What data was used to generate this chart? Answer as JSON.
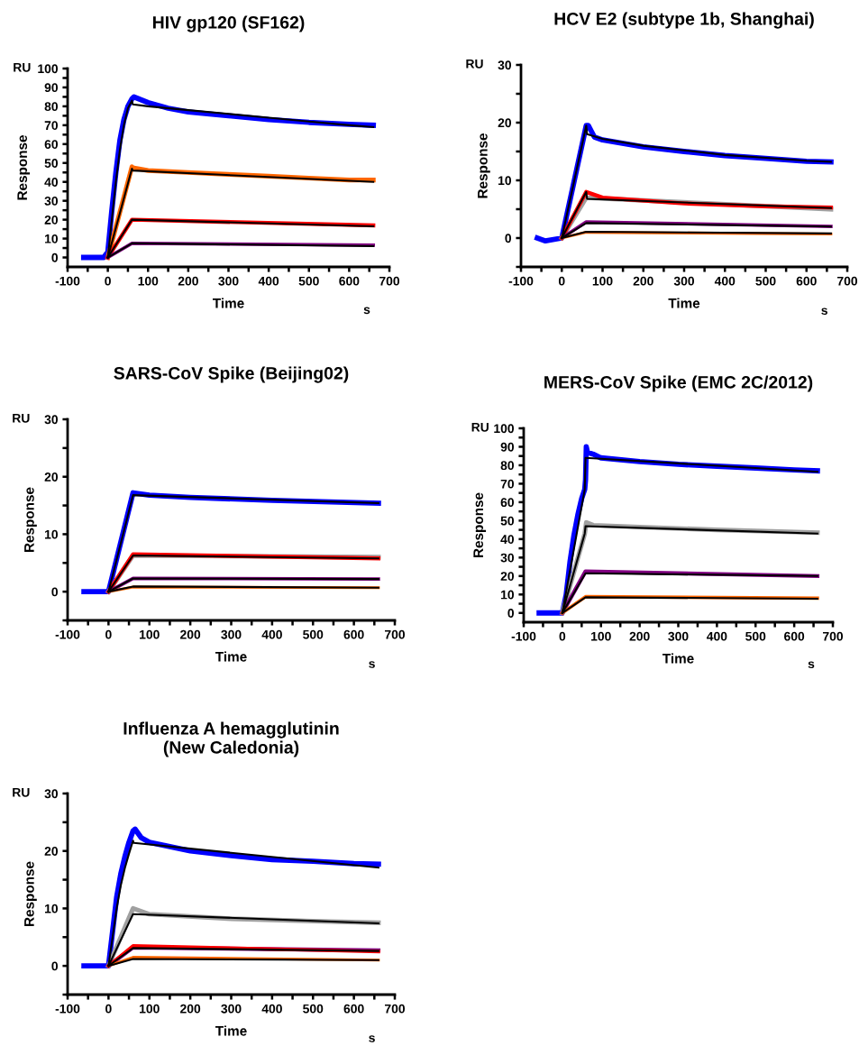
{
  "chart_data": [
    {
      "type": "line",
      "title": "HIV gp120 (SF162)",
      "xlabel": "Time",
      "ylabel": "Response",
      "annotations": [
        "RU",
        "s"
      ],
      "line_style": "solid",
      "xlim": [
        -100,
        700
      ],
      "xticks": [
        -100,
        {
          "value": -50,
          "label": null
        },
        0,
        {
          "value": 50,
          "label": null
        },
        100,
        {
          "value": 150,
          "label": null
        },
        200,
        {
          "value": 250,
          "label": null
        },
        300,
        {
          "value": 350,
          "label": null
        },
        400,
        {
          "value": 450,
          "label": null
        },
        500,
        {
          "value": 550,
          "label": null
        },
        600,
        {
          "value": 650,
          "label": null
        },
        700
      ],
      "ylim": [
        -5,
        100
      ],
      "yticks": [
        0,
        {
          "value": 5,
          "label": null
        },
        10,
        {
          "value": 15,
          "label": null
        },
        20,
        {
          "value": 25,
          "label": null
        },
        30,
        {
          "value": 35,
          "label": null
        },
        40,
        {
          "value": 45,
          "label": null
        },
        50,
        {
          "value": 55,
          "label": null
        },
        60,
        {
          "value": 65,
          "label": null
        },
        70,
        {
          "value": 75,
          "label": null
        },
        80,
        {
          "value": 85,
          "label": null
        },
        90,
        {
          "value": 95,
          "label": null
        },
        100
      ],
      "series": [
        {
          "color": "#0000ff",
          "x": [
            -60,
            -10,
            0,
            10,
            20,
            30,
            40,
            50,
            60,
            65,
            100,
            150,
            200,
            300,
            400,
            500,
            600,
            660
          ],
          "values": [
            0,
            0,
            3,
            25,
            45,
            62,
            73,
            80,
            84,
            85,
            82,
            79,
            77,
            75,
            73,
            71.5,
            70.5,
            70
          ]
        },
        {
          "color": "#ff6600",
          "x": [
            0,
            60,
            62,
            100,
            200,
            300,
            400,
            500,
            600,
            660
          ],
          "values": [
            0,
            48,
            47.5,
            46,
            45,
            44,
            43,
            42,
            41,
            41
          ]
        },
        {
          "color": "#ff0000",
          "x": [
            0,
            60,
            660
          ],
          "values": [
            0,
            20,
            17
          ]
        },
        {
          "color": "#800080",
          "x": [
            0,
            60,
            660
          ],
          "values": [
            0,
            7.5,
            6.5
          ]
        },
        {
          "color": "#000000",
          "x": [
            0,
            10,
            20,
            30,
            40,
            50,
            60,
            62,
            100,
            200,
            300,
            400,
            500,
            600,
            660
          ],
          "values": [
            0,
            20,
            40,
            57,
            70,
            79,
            83,
            81,
            80,
            78,
            76,
            74,
            72,
            70,
            69
          ]
        },
        {
          "color": "#000000",
          "x": [
            0,
            60,
            62,
            660
          ],
          "values": [
            0,
            47,
            46,
            40
          ]
        },
        {
          "color": "#000000",
          "x": [
            0,
            60,
            660
          ],
          "values": [
            0,
            20,
            16.5
          ]
        },
        {
          "color": "#000000",
          "x": [
            0,
            60,
            660
          ],
          "values": [
            0,
            7.5,
            6
          ]
        }
      ]
    },
    {
      "type": "line",
      "title": "HCV E2 (subtype 1b, Shanghai)",
      "xlabel": "Time",
      "ylabel": "Response",
      "annotations": [
        "RU",
        "s"
      ],
      "line_style": "solid",
      "xlim": [
        -100,
        700
      ],
      "xticks": [
        -100,
        {
          "value": -50,
          "label": null
        },
        0,
        {
          "value": 50,
          "label": null
        },
        100,
        {
          "value": 150,
          "label": null
        },
        200,
        {
          "value": 250,
          "label": null
        },
        300,
        {
          "value": 350,
          "label": null
        },
        400,
        {
          "value": 450,
          "label": null
        },
        500,
        {
          "value": 550,
          "label": null
        },
        600,
        {
          "value": 650,
          "label": null
        },
        700
      ],
      "ylim": [
        -5,
        30
      ],
      "yticks": [
        {
          "value": -5,
          "label": null
        },
        0,
        {
          "value": 5,
          "label": null
        },
        10,
        {
          "value": 15,
          "label": null
        },
        20,
        {
          "value": 25,
          "label": null
        },
        30
      ],
      "series": [
        {
          "color": "#0000ff",
          "x": [
            -60,
            -40,
            0,
            60,
            65,
            80,
            100,
            200,
            300,
            400,
            500,
            600,
            660
          ],
          "values": [
            0,
            -0.5,
            0,
            19.5,
            19.5,
            17.5,
            17,
            15.8,
            15,
            14.3,
            13.8,
            13.3,
            13.2
          ]
        },
        {
          "color": "#a0a0a0",
          "x": [
            0,
            60,
            660
          ],
          "values": [
            0,
            7,
            5
          ]
        },
        {
          "color": "#ff0000",
          "x": [
            0,
            60,
            100,
            300,
            500,
            660
          ],
          "values": [
            0,
            8,
            7,
            6,
            5.5,
            5.3
          ]
        },
        {
          "color": "#800080",
          "x": [
            0,
            60,
            660
          ],
          "values": [
            0,
            2.8,
            2
          ]
        },
        {
          "color": "#ff6600",
          "x": [
            0,
            60,
            660
          ],
          "values": [
            0,
            1,
            0.7
          ]
        },
        {
          "color": "#000000",
          "x": [
            0,
            60,
            62,
            100,
            200,
            300,
            400,
            500,
            600,
            660
          ],
          "values": [
            0,
            19.5,
            18,
            17.2,
            16,
            15.2,
            14.4,
            13.9,
            13.4,
            13.2
          ]
        },
        {
          "color": "#000000",
          "x": [
            0,
            60,
            62,
            660
          ],
          "values": [
            0,
            8,
            6.8,
            5.2
          ]
        },
        {
          "color": "#000000",
          "x": [
            0,
            60,
            660
          ],
          "values": [
            0,
            2.6,
            2
          ]
        },
        {
          "color": "#000000",
          "x": [
            0,
            60,
            660
          ],
          "values": [
            0,
            1.1,
            0.8
          ]
        }
      ]
    },
    {
      "type": "line",
      "title": "SARS-CoV Spike (Beijing02)",
      "xlabel": "Time",
      "ylabel": "Response",
      "annotations": [
        "RU",
        "s"
      ],
      "line_style": "solid",
      "xlim": [
        -100,
        700
      ],
      "xticks": [
        -100,
        {
          "value": -50,
          "label": null
        },
        0,
        {
          "value": 50,
          "label": null
        },
        100,
        {
          "value": 150,
          "label": null
        },
        200,
        {
          "value": 250,
          "label": null
        },
        300,
        {
          "value": 350,
          "label": null
        },
        400,
        {
          "value": 450,
          "label": null
        },
        500,
        {
          "value": 550,
          "label": null
        },
        600,
        {
          "value": 650,
          "label": null
        },
        700
      ],
      "ylim": [
        -5,
        30
      ],
      "yticks": [
        {
          "value": -5,
          "label": null
        },
        0,
        {
          "value": 5,
          "label": null
        },
        10,
        {
          "value": 15,
          "label": null
        },
        20,
        {
          "value": 25,
          "label": null
        },
        30
      ],
      "series": [
        {
          "color": "#0000ff",
          "x": [
            -60,
            0,
            60,
            100,
            200,
            400,
            660
          ],
          "values": [
            0,
            0,
            17.2,
            16.8,
            16.4,
            15.9,
            15.4
          ]
        },
        {
          "color": "#a0a0a0",
          "x": [
            0,
            60,
            660
          ],
          "values": [
            0,
            6.3,
            6
          ]
        },
        {
          "color": "#ff0000",
          "x": [
            0,
            60,
            660
          ],
          "values": [
            0,
            6.5,
            5.8
          ]
        },
        {
          "color": "#800080",
          "x": [
            0,
            60,
            660
          ],
          "values": [
            0,
            2.3,
            2.2
          ]
        },
        {
          "color": "#ff6600",
          "x": [
            0,
            60,
            660
          ],
          "values": [
            0,
            0.8,
            0.7
          ]
        },
        {
          "color": "#000000",
          "x": [
            0,
            60,
            660
          ],
          "values": [
            0,
            16.8,
            15.4
          ]
        },
        {
          "color": "#000000",
          "x": [
            0,
            60,
            660
          ],
          "values": [
            0,
            6.3,
            5.8
          ]
        },
        {
          "color": "#000000",
          "x": [
            0,
            60,
            660
          ],
          "values": [
            0,
            2.3,
            2.2
          ]
        },
        {
          "color": "#000000",
          "x": [
            0,
            60,
            660
          ],
          "values": [
            0,
            0.9,
            0.7
          ]
        }
      ]
    },
    {
      "type": "line",
      "title": "MERS-CoV Spike (EMC 2C/2012)",
      "xlabel": "Time",
      "ylabel": "Response",
      "annotations": [
        "RU",
        "s"
      ],
      "line_style": "solid",
      "xlim": [
        -100,
        700
      ],
      "xticks": [
        -100,
        {
          "value": -50,
          "label": null
        },
        0,
        {
          "value": 50,
          "label": null
        },
        100,
        {
          "value": 150,
          "label": null
        },
        200,
        {
          "value": 250,
          "label": null
        },
        300,
        {
          "value": 350,
          "label": null
        },
        400,
        {
          "value": 450,
          "label": null
        },
        500,
        {
          "value": 550,
          "label": null
        },
        600,
        {
          "value": 650,
          "label": null
        },
        700
      ],
      "ylim": [
        -5,
        100
      ],
      "yticks": [
        0,
        {
          "value": 5,
          "label": null
        },
        10,
        {
          "value": 15,
          "label": null
        },
        20,
        {
          "value": 25,
          "label": null
        },
        30,
        {
          "value": 35,
          "label": null
        },
        40,
        {
          "value": 45,
          "label": null
        },
        50,
        {
          "value": 55,
          "label": null
        },
        60,
        {
          "value": 65,
          "label": null
        },
        70,
        {
          "value": 75,
          "label": null
        },
        80,
        {
          "value": 85,
          "label": null
        },
        90,
        {
          "value": 95,
          "label": null
        },
        100
      ],
      "series": [
        {
          "color": "#0000ff",
          "x": [
            -60,
            0,
            10,
            20,
            30,
            40,
            50,
            58,
            60,
            62,
            65,
            80,
            100,
            200,
            300,
            400,
            500,
            600,
            660
          ],
          "values": [
            0,
            0,
            10,
            28,
            42,
            53,
            62,
            67,
            72,
            90,
            87,
            86,
            84,
            82,
            80.5,
            79.5,
            78.5,
            77.5,
            77
          ]
        },
        {
          "color": "#a0a0a0",
          "x": [
            0,
            58,
            62,
            80,
            200,
            400,
            660
          ],
          "values": [
            0,
            43,
            49,
            47.5,
            46.5,
            45,
            43.5
          ]
        },
        {
          "color": "#800080",
          "x": [
            0,
            60,
            660
          ],
          "values": [
            0,
            22.5,
            20
          ]
        },
        {
          "color": "#ff6600",
          "x": [
            0,
            60,
            660
          ],
          "values": [
            0,
            8.8,
            8
          ]
        },
        {
          "color": "#000000",
          "x": [
            0,
            58,
            60,
            100,
            300,
            500,
            660
          ],
          "values": [
            0,
            67,
            84,
            83.5,
            81,
            78.5,
            76.5
          ]
        },
        {
          "color": "#000000",
          "x": [
            0,
            58,
            60,
            660
          ],
          "values": [
            0,
            43,
            47,
            43
          ]
        },
        {
          "color": "#000000",
          "x": [
            0,
            60,
            660
          ],
          "values": [
            0,
            21.5,
            20
          ]
        },
        {
          "color": "#000000",
          "x": [
            0,
            60,
            660
          ],
          "values": [
            0,
            8.5,
            7.7
          ]
        }
      ]
    },
    {
      "type": "line",
      "title": "Influenza A hemagglutinin\n(New Caledonia)",
      "xlabel": "Time",
      "ylabel": "Response",
      "annotations": [
        "RU",
        "s"
      ],
      "line_style": "solid",
      "xlim": [
        -100,
        700
      ],
      "xticks": [
        -100,
        {
          "value": -50,
          "label": null
        },
        0,
        {
          "value": 50,
          "label": null
        },
        100,
        {
          "value": 150,
          "label": null
        },
        200,
        {
          "value": 250,
          "label": null
        },
        300,
        {
          "value": 350,
          "label": null
        },
        400,
        {
          "value": 450,
          "label": null
        },
        500,
        {
          "value": 550,
          "label": null
        },
        600,
        {
          "value": 650,
          "label": null
        },
        700
      ],
      "ylim": [
        -5,
        30
      ],
      "yticks": [
        {
          "value": -5,
          "label": null
        },
        0,
        {
          "value": 5,
          "label": null
        },
        10,
        {
          "value": 15,
          "label": null
        },
        20,
        {
          "value": 25,
          "label": null
        },
        30
      ],
      "series": [
        {
          "color": "#0000ff",
          "x": [
            -60,
            0,
            10,
            20,
            30,
            40,
            50,
            60,
            65,
            80,
            100,
            200,
            300,
            400,
            500,
            600,
            660
          ],
          "values": [
            0,
            0,
            6,
            12,
            16,
            19,
            21.5,
            23.5,
            23.8,
            22.3,
            21.5,
            20,
            19.2,
            18.5,
            18.2,
            17.8,
            17.7
          ]
        },
        {
          "color": "#a0a0a0",
          "x": [
            0,
            60,
            100,
            300,
            500,
            660
          ],
          "values": [
            0,
            10,
            9,
            8.2,
            7.8,
            7.5
          ]
        },
        {
          "color": "#800080",
          "x": [
            0,
            60,
            660
          ],
          "values": [
            0,
            3.2,
            2.7
          ]
        },
        {
          "color": "#ff0000",
          "x": [
            0,
            60,
            660
          ],
          "values": [
            0,
            3.5,
            2.5
          ]
        },
        {
          "color": "#ff6600",
          "x": [
            0,
            60,
            660
          ],
          "values": [
            0,
            1.5,
            1
          ]
        },
        {
          "color": "#000000",
          "x": [
            0,
            10,
            20,
            30,
            40,
            50,
            60,
            62,
            660
          ],
          "values": [
            0,
            5,
            10,
            14,
            17,
            19.5,
            21.8,
            21.4,
            17.1
          ]
        },
        {
          "color": "#000000",
          "x": [
            0,
            60,
            660
          ],
          "values": [
            0,
            9,
            7.4
          ]
        },
        {
          "color": "#000000",
          "x": [
            0,
            60,
            660
          ],
          "values": [
            0,
            3.1,
            2.6
          ]
        },
        {
          "color": "#000000",
          "x": [
            0,
            60,
            660
          ],
          "values": [
            0,
            1.2,
            1
          ]
        }
      ]
    }
  ]
}
